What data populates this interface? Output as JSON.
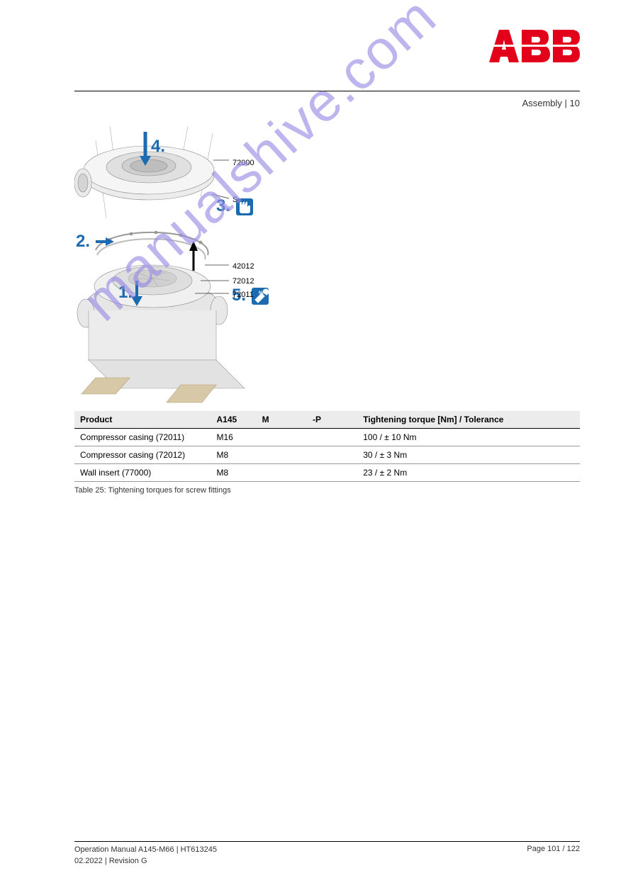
{
  "header": {
    "logo_letters": "ABB",
    "logo_color": "#e2001a",
    "chapter": "Assembly | 10"
  },
  "figure": {
    "callouts": {
      "c1": "72000",
      "c2": "S",
      "c3": "42012",
      "c4": "72012",
      "c5": "72011"
    },
    "steps": {
      "s1": "1.",
      "s2": "2.",
      "s3": "3.",
      "s4": "4.",
      "s5": "5."
    }
  },
  "table": {
    "headers": {
      "product": "Product",
      "a": "A145",
      "m": "M",
      "t": "-P",
      "tol": "Tightening torque [Nm] / Tolerance"
    },
    "rows": [
      {
        "product": "Compressor casing (72011)",
        "a": "M16",
        "m": "",
        "t": "",
        "tol": "100 / ± 10 Nm"
      },
      {
        "product": "Compressor casing (72012)",
        "a": "M8",
        "m": "",
        "t": "",
        "tol": "30 / ± 3 Nm"
      },
      {
        "product": "Wall insert (77000)",
        "a": "M8",
        "m": "",
        "t": "",
        "tol": "23 / ± 2 Nm"
      }
    ],
    "caption": "Table 25: Tightening torques for screw fittings"
  },
  "watermark": "manualshive.com",
  "footer": {
    "doc_id": "Operation Manual A145-M66 | HT613245",
    "date_rev": "02.2022 | Revision G",
    "page": "Page 101 / 122"
  },
  "colors": {
    "accent": "#1c6bb0",
    "watermark": "#9b8ee6",
    "logo": "#e2001a"
  }
}
